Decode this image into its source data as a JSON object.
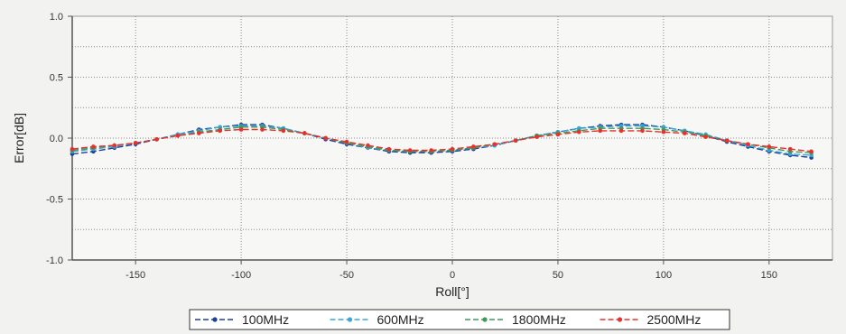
{
  "chart_data": {
    "type": "line",
    "title": "",
    "xlabel": "Roll[°]",
    "ylabel": "Error[dB]",
    "xlim": [
      -180,
      180
    ],
    "ylim": [
      -1.0,
      1.0
    ],
    "xticks": [
      -150,
      -100,
      -50,
      0,
      50,
      100,
      150
    ],
    "yticks": [
      1.0,
      0.5,
      0.0,
      -0.5,
      -1.0
    ],
    "ytick_labels": [
      "1.0",
      "0.5",
      "0.0",
      "-0.5",
      "-1.0"
    ],
    "grid": true,
    "legend_position": "bottom",
    "x": [
      -180,
      -170,
      -160,
      -150,
      -140,
      -130,
      -120,
      -110,
      -100,
      -90,
      -80,
      -70,
      -60,
      -50,
      -40,
      -30,
      -20,
      -10,
      0,
      10,
      20,
      30,
      40,
      50,
      60,
      70,
      80,
      90,
      100,
      110,
      120,
      130,
      140,
      150,
      160,
      170
    ],
    "series": [
      {
        "name": "100MHz",
        "color": "#1f3f9a",
        "values": [
          -0.13,
          -0.11,
          -0.08,
          -0.05,
          -0.01,
          0.03,
          0.07,
          0.09,
          0.11,
          0.11,
          0.08,
          0.04,
          -0.01,
          -0.05,
          -0.08,
          -0.11,
          -0.12,
          -0.12,
          -0.11,
          -0.09,
          -0.06,
          -0.02,
          0.02,
          0.05,
          0.08,
          0.1,
          0.11,
          0.11,
          0.09,
          0.06,
          0.02,
          -0.03,
          -0.07,
          -0.11,
          -0.14,
          -0.16
        ]
      },
      {
        "name": "600MHz",
        "color": "#3aa6d8",
        "values": [
          -0.11,
          -0.09,
          -0.07,
          -0.04,
          -0.01,
          0.03,
          0.06,
          0.09,
          0.1,
          0.1,
          0.08,
          0.04,
          0.0,
          -0.04,
          -0.08,
          -0.1,
          -0.11,
          -0.11,
          -0.1,
          -0.08,
          -0.06,
          -0.02,
          0.02,
          0.05,
          0.08,
          0.09,
          0.1,
          0.1,
          0.09,
          0.06,
          0.03,
          -0.02,
          -0.06,
          -0.1,
          -0.13,
          -0.14
        ]
      },
      {
        "name": "1800MHz",
        "color": "#3f9a5a",
        "values": [
          -0.1,
          -0.08,
          -0.06,
          -0.04,
          -0.01,
          0.02,
          0.05,
          0.07,
          0.09,
          0.09,
          0.07,
          0.04,
          0.0,
          -0.04,
          -0.07,
          -0.1,
          -0.11,
          -0.11,
          -0.1,
          -0.08,
          -0.05,
          -0.02,
          0.02,
          0.04,
          0.06,
          0.08,
          0.08,
          0.08,
          0.07,
          0.05,
          0.02,
          -0.02,
          -0.05,
          -0.08,
          -0.11,
          -0.12
        ]
      },
      {
        "name": "2500MHz",
        "color": "#e8302c",
        "values": [
          -0.09,
          -0.07,
          -0.06,
          -0.04,
          -0.01,
          0.02,
          0.04,
          0.06,
          0.07,
          0.07,
          0.06,
          0.04,
          0.0,
          -0.03,
          -0.06,
          -0.09,
          -0.1,
          -0.1,
          -0.09,
          -0.07,
          -0.05,
          -0.02,
          0.01,
          0.03,
          0.05,
          0.06,
          0.06,
          0.06,
          0.05,
          0.04,
          0.01,
          -0.02,
          -0.05,
          -0.07,
          -0.09,
          -0.11
        ]
      }
    ]
  }
}
